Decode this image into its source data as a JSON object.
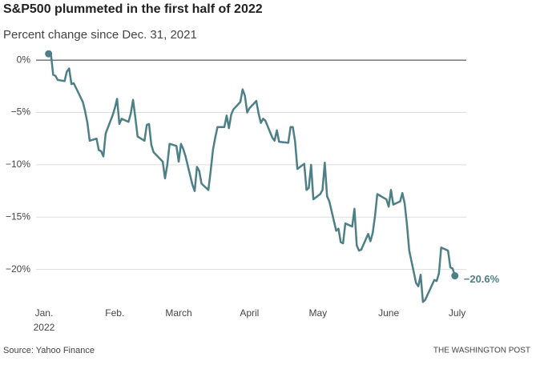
{
  "chart_data": {
    "type": "line",
    "title": "S&P500 plummeted in the first half of 2022",
    "subtitle": "Percent change since Dec. 31, 2021",
    "source": "Source: Yahoo Finance",
    "credit": "THE WASHINGTON POST",
    "xtick_year": "2022",
    "xlim": [
      -2.5,
      186
    ],
    "xticks": [
      {
        "value": 1,
        "label": "Jan."
      },
      {
        "value": 32,
        "label": "Feb."
      },
      {
        "value": 60,
        "label": "March"
      },
      {
        "value": 91,
        "label": "April"
      },
      {
        "value": 121,
        "label": "May"
      },
      {
        "value": 152,
        "label": "June"
      },
      {
        "value": 182,
        "label": "July"
      }
    ],
    "ylim": [
      -24,
      1
    ],
    "yticks": [
      {
        "value": 0,
        "label": "0%"
      },
      {
        "value": -5,
        "label": "−5%"
      },
      {
        "value": -10,
        "label": "−10%"
      },
      {
        "value": -15,
        "label": "−15%"
      },
      {
        "value": -20,
        "label": "−20%"
      }
    ],
    "grid": true,
    "x": [
      3,
      4,
      5,
      6,
      7,
      10,
      11,
      12,
      13,
      14,
      18,
      19,
      20,
      21,
      24,
      25,
      26,
      27,
      28,
      31,
      32,
      33,
      34,
      35,
      38,
      39,
      40,
      41,
      42,
      45,
      46,
      47,
      48,
      49,
      53,
      54,
      55,
      56,
      59,
      60,
      61,
      62,
      63,
      66,
      67,
      68,
      69,
      70,
      73,
      74,
      75,
      76,
      77,
      80,
      81,
      82,
      83,
      84,
      87,
      88,
      89,
      90,
      91,
      94,
      95,
      96,
      97,
      98,
      101,
      102,
      103,
      104,
      108,
      109,
      110,
      111,
      112,
      115,
      116,
      117,
      118,
      119,
      122,
      123,
      124,
      125,
      126,
      129,
      130,
      131,
      132,
      133,
      136,
      137,
      138,
      139,
      140,
      143,
      144,
      145,
      146,
      147,
      151,
      152,
      153,
      154,
      157,
      158,
      159,
      160,
      161,
      164,
      165,
      166,
      167,
      168,
      172,
      173,
      174,
      175,
      178,
      179,
      180,
      181
    ],
    "series": [
      {
        "name": "S&P500",
        "color": "#4d7f87",
        "values": [
          0.6,
          0.6,
          -1.4,
          -1.5,
          -1.9,
          -2.0,
          -1.1,
          -0.8,
          -2.3,
          -2.2,
          -4.0,
          -4.9,
          -6.0,
          -7.7,
          -7.5,
          -8.6,
          -8.7,
          -9.2,
          -7.0,
          -5.3,
          -4.6,
          -3.7,
          -6.1,
          -5.6,
          -5.9,
          -5.1,
          -3.8,
          -5.5,
          -7.3,
          -7.7,
          -6.2,
          -6.1,
          -8.1,
          -8.8,
          -9.7,
          -11.3,
          -10.0,
          -8.0,
          -8.2,
          -9.7,
          -8.0,
          -8.5,
          -9.2,
          -11.9,
          -12.5,
          -10.2,
          -10.6,
          -11.8,
          -12.4,
          -10.6,
          -8.6,
          -7.4,
          -6.4,
          -6.4,
          -5.3,
          -6.5,
          -5.2,
          -4.7,
          -4.0,
          -2.8,
          -3.4,
          -5.0,
          -4.6,
          -3.9,
          -5.1,
          -6.0,
          -5.6,
          -5.8,
          -7.4,
          -7.7,
          -6.7,
          -7.8,
          -7.9,
          -6.4,
          -6.4,
          -7.8,
          -10.4,
          -9.9,
          -12.4,
          -12.2,
          -10.0,
          -13.3,
          -12.8,
          -12.4,
          -9.8,
          -13.0,
          -13.5,
          -16.3,
          -16.1,
          -17.4,
          -17.5,
          -15.6,
          -15.9,
          -14.2,
          -17.7,
          -18.2,
          -18.1,
          -16.6,
          -17.3,
          -16.5,
          -14.9,
          -12.8,
          -13.3,
          -14.0,
          -12.4,
          -13.8,
          -13.5,
          -12.7,
          -13.7,
          -15.7,
          -18.2,
          -21.3,
          -21.6,
          -20.5,
          -23.1,
          -22.9,
          -21.0,
          -21.1,
          -20.4,
          -17.9,
          -18.2,
          -19.8,
          -19.9,
          -20.6
        ],
        "value_labels": [
          null,
          null,
          null,
          null,
          null,
          null,
          null,
          null,
          null,
          null,
          null,
          null,
          null,
          null,
          null,
          null,
          null,
          null,
          null,
          null,
          null,
          null,
          null,
          null,
          null,
          null,
          null,
          null,
          null,
          null,
          null,
          null,
          null,
          null,
          null,
          null,
          null,
          null,
          null,
          null,
          null,
          null,
          null,
          null,
          null,
          null,
          null,
          null,
          null,
          null,
          null,
          null,
          null,
          null,
          null,
          null,
          null,
          null,
          null,
          null,
          null,
          null,
          null,
          null,
          null,
          null,
          null,
          null,
          null,
          null,
          null,
          null,
          null,
          null,
          null,
          null,
          null,
          null,
          null,
          null,
          null,
          null,
          null,
          null,
          null,
          null,
          null,
          null,
          null,
          null,
          null,
          null,
          null,
          null,
          null,
          null,
          null,
          null,
          null,
          null,
          null,
          null,
          null,
          null,
          null,
          null,
          null,
          null,
          null,
          null,
          null,
          null,
          null,
          null,
          null,
          null,
          null,
          null,
          null,
          null,
          null,
          null,
          null,
          "−20.6%"
        ]
      }
    ]
  }
}
